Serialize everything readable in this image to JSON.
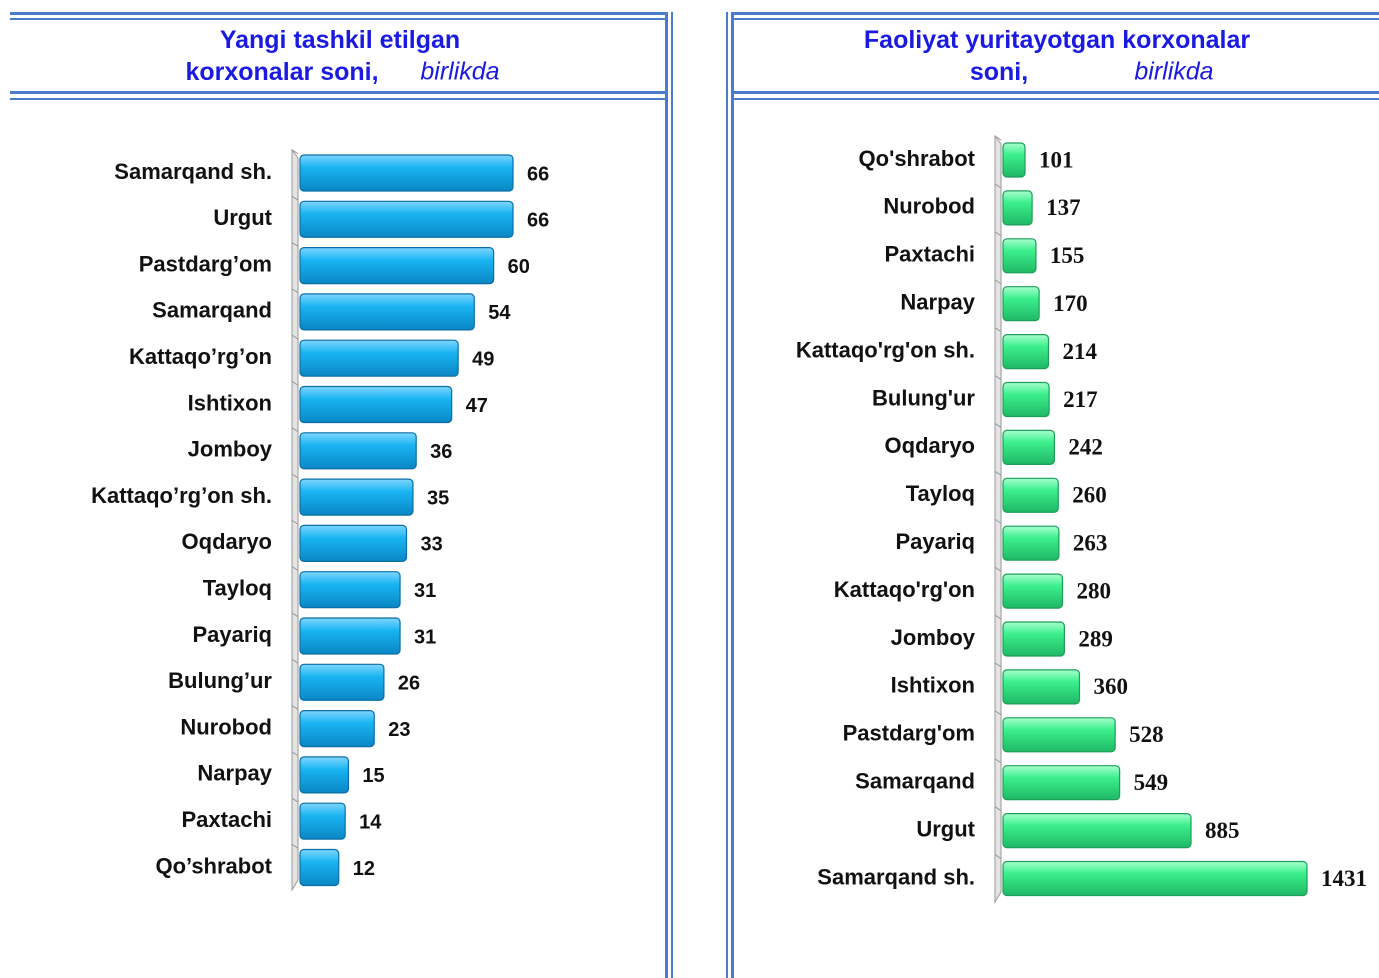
{
  "chart_data": [
    {
      "type": "bar",
      "orientation": "horizontal",
      "title": "Yangi tashkil etilgan korxonalar soni,",
      "subtitle": "birlikda",
      "categories": [
        "Samarqand sh.",
        "Urgut",
        "Pastdarg’om",
        "Samarqand",
        "Kattaqo’rg’on",
        "Ishtixon",
        "Jomboy",
        "Kattaqo’rg’on sh.",
        "Oqdaryo",
        "Tayloq",
        "Payariq",
        "Bulung’ur",
        "Nurobod",
        "Narpay",
        "Paxtachi",
        "Qo’shrabot"
      ],
      "values": [
        66,
        66,
        60,
        54,
        49,
        47,
        36,
        35,
        33,
        31,
        31,
        26,
        23,
        15,
        14,
        12
      ],
      "color": "#19b4f2"
    },
    {
      "type": "bar",
      "orientation": "horizontal",
      "title": "Faoliyat yuritayotgan korxonalar soni,",
      "subtitle": "birlikda",
      "categories": [
        "Qo'shrabot",
        "Nurobod",
        "Paxtachi",
        "Narpay",
        "Kattaqo'rg'on sh.",
        "Bulung'ur",
        "Oqdaryo",
        "Tayloq",
        "Payariq",
        "Kattaqo'rg'on",
        "Jomboy",
        "Ishtixon",
        "Pastdarg'om",
        "Samarqand",
        "Urgut",
        "Samarqand sh."
      ],
      "values": [
        101,
        137,
        155,
        170,
        214,
        217,
        242,
        260,
        263,
        280,
        289,
        360,
        528,
        549,
        885,
        1431
      ],
      "color": "#3cef8c"
    }
  ]
}
